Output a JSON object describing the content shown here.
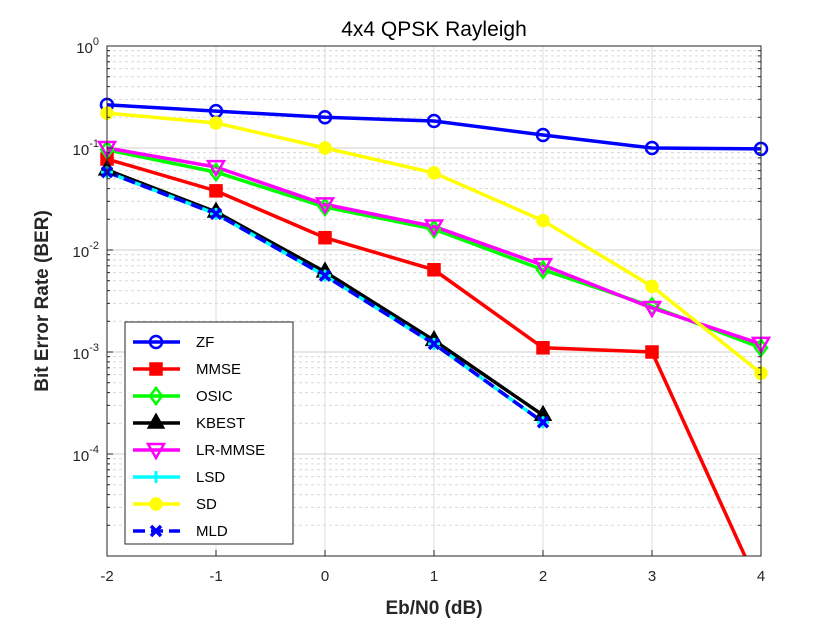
{
  "chart_data": {
    "type": "line",
    "title": "4x4 QPSK Rayleigh",
    "xlabel": "Eb/N0 (dB)",
    "ylabel": "Bit Error Rate (BER)",
    "xlim": [
      -2,
      4
    ],
    "ylim": [
      1e-05,
      1
    ],
    "yscale": "log",
    "grid": true,
    "minor_grid": true,
    "legend_position": "bottom-left",
    "x_ticks": [
      "-2",
      "-1",
      "0",
      "1",
      "2",
      "3",
      "4"
    ],
    "y_ticks": [
      {
        "base": "10",
        "exp": "0"
      },
      {
        "base": "10",
        "exp": "-1"
      },
      {
        "base": "10",
        "exp": "-2"
      },
      {
        "base": "10",
        "exp": "-3"
      },
      {
        "base": "10",
        "exp": "-4"
      }
    ],
    "x": [
      -2,
      -1,
      0,
      1,
      2,
      3,
      4
    ],
    "series": [
      {
        "name": "ZF",
        "color": "#0000ff",
        "marker": "circle-open",
        "dash": false,
        "values": [
          0.265,
          0.23,
          0.2,
          0.184,
          0.134,
          0.1,
          0.098
        ]
      },
      {
        "name": "MMSE",
        "color": "#ff0000",
        "marker": "square",
        "dash": false,
        "values": [
          0.078,
          0.038,
          0.0132,
          0.0064,
          0.0011,
          0.001,
          4.5e-06
        ]
      },
      {
        "name": "OSIC",
        "color": "#00ff00",
        "marker": "diamond-open",
        "dash": false,
        "values": [
          0.096,
          0.058,
          0.0264,
          0.016,
          0.0064,
          0.0028,
          0.0011
        ]
      },
      {
        "name": "KBEST",
        "color": "#000000",
        "marker": "triangle-up",
        "dash": false,
        "values": [
          0.061,
          0.0236,
          0.0061,
          0.0013,
          0.00024,
          null,
          null
        ]
      },
      {
        "name": "LR-MMSE",
        "color": "#ff00ff",
        "marker": "triangle-down-open",
        "dash": false,
        "values": [
          0.1,
          0.065,
          0.028,
          0.017,
          0.0071,
          0.0027,
          0.0012
        ]
      },
      {
        "name": "LSD",
        "color": "#00ffff",
        "marker": "plus",
        "dash": false,
        "values": [
          0.058,
          0.0226,
          0.0056,
          0.0012,
          0.000205,
          null,
          null
        ]
      },
      {
        "name": "SD",
        "color": "#ffff00",
        "marker": "circle-filled",
        "dash": false,
        "values": [
          0.22,
          0.176,
          0.1,
          0.057,
          0.0194,
          0.0044,
          0.00062
        ]
      },
      {
        "name": "MLD",
        "color": "#0000ff",
        "marker": "x",
        "dash": true,
        "values": [
          0.058,
          0.0226,
          0.0056,
          0.0012,
          0.000205,
          null,
          null
        ]
      }
    ]
  }
}
